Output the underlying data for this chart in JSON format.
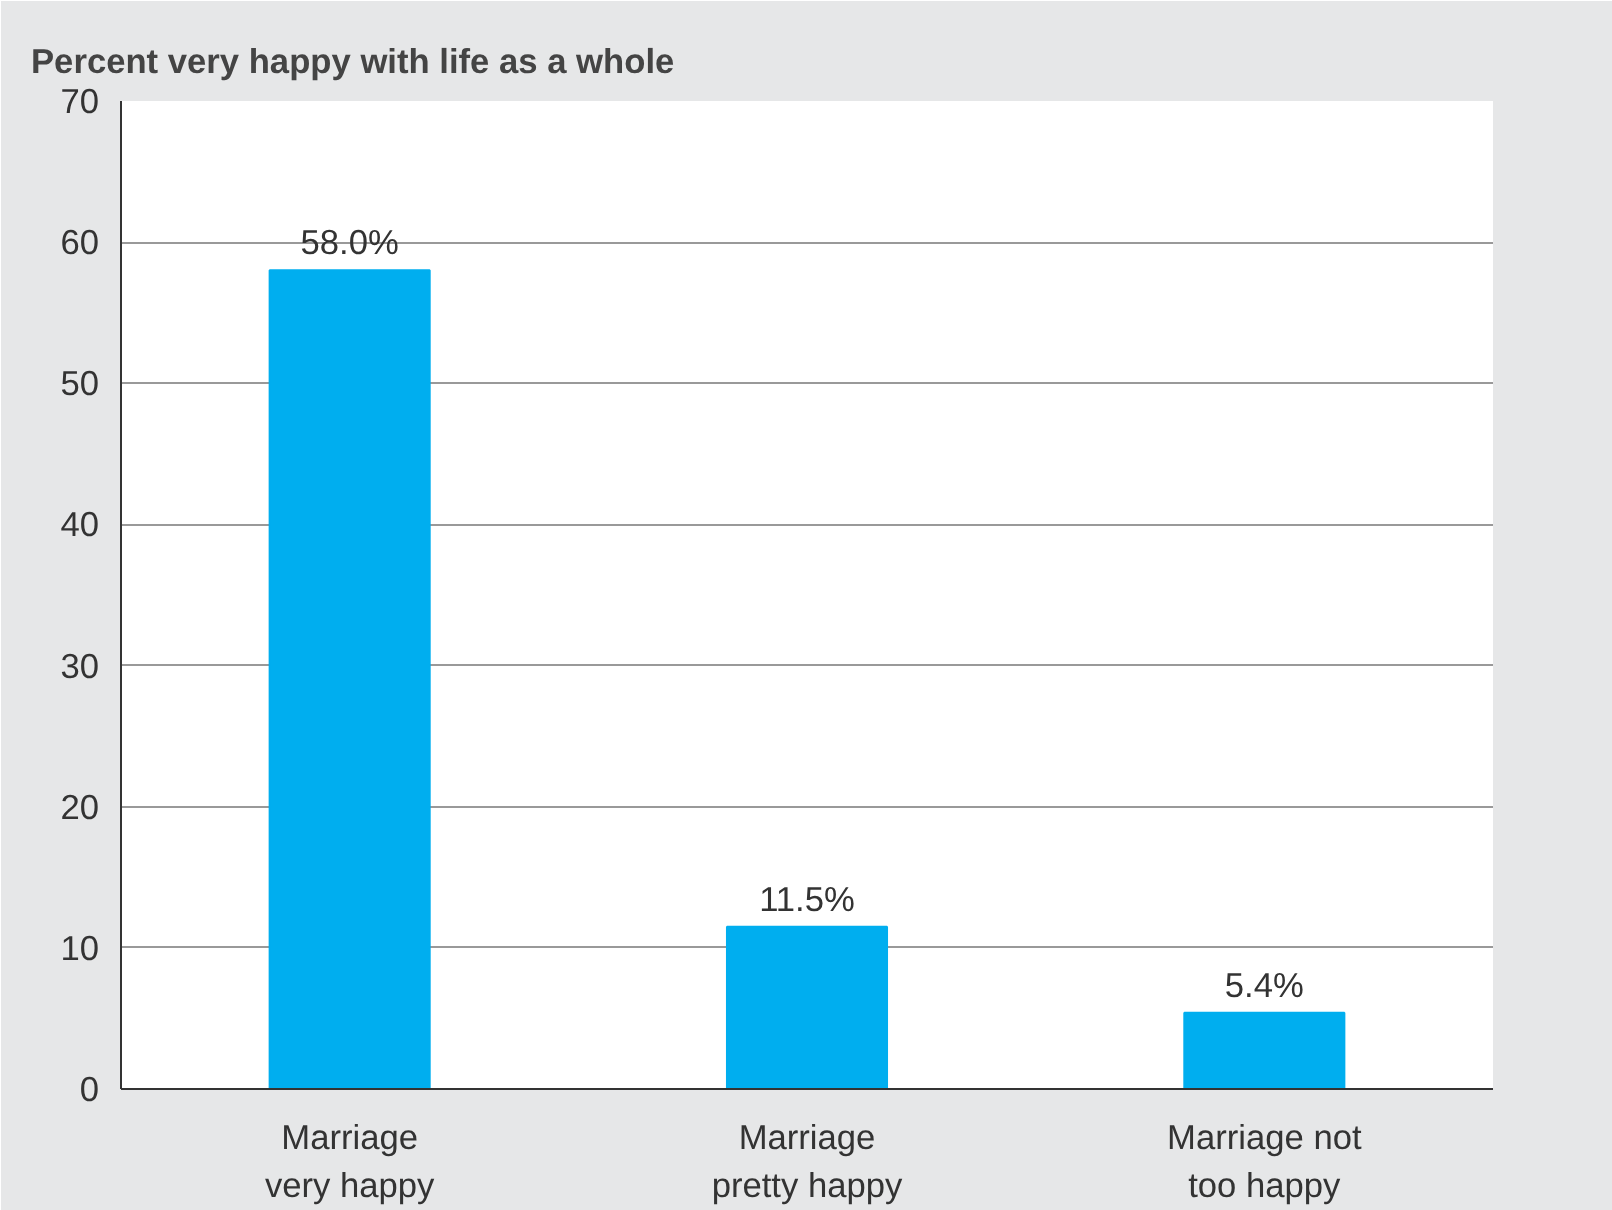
{
  "chart_data": {
    "type": "bar",
    "title": "Percent very happy with life as a whole",
    "categories": [
      "Marriage\nvery happy",
      "Marriage\npretty happy",
      "Marriage not\ntoo happy"
    ],
    "values": [
      58.0,
      11.5,
      5.4
    ],
    "value_labels": [
      "58.0%",
      "11.5%",
      "5.4%"
    ],
    "color": "#00aeef",
    "ylim": [
      0,
      70
    ],
    "yticks": [
      0,
      10,
      20,
      30,
      40,
      50,
      60,
      70
    ],
    "grid": "y"
  }
}
